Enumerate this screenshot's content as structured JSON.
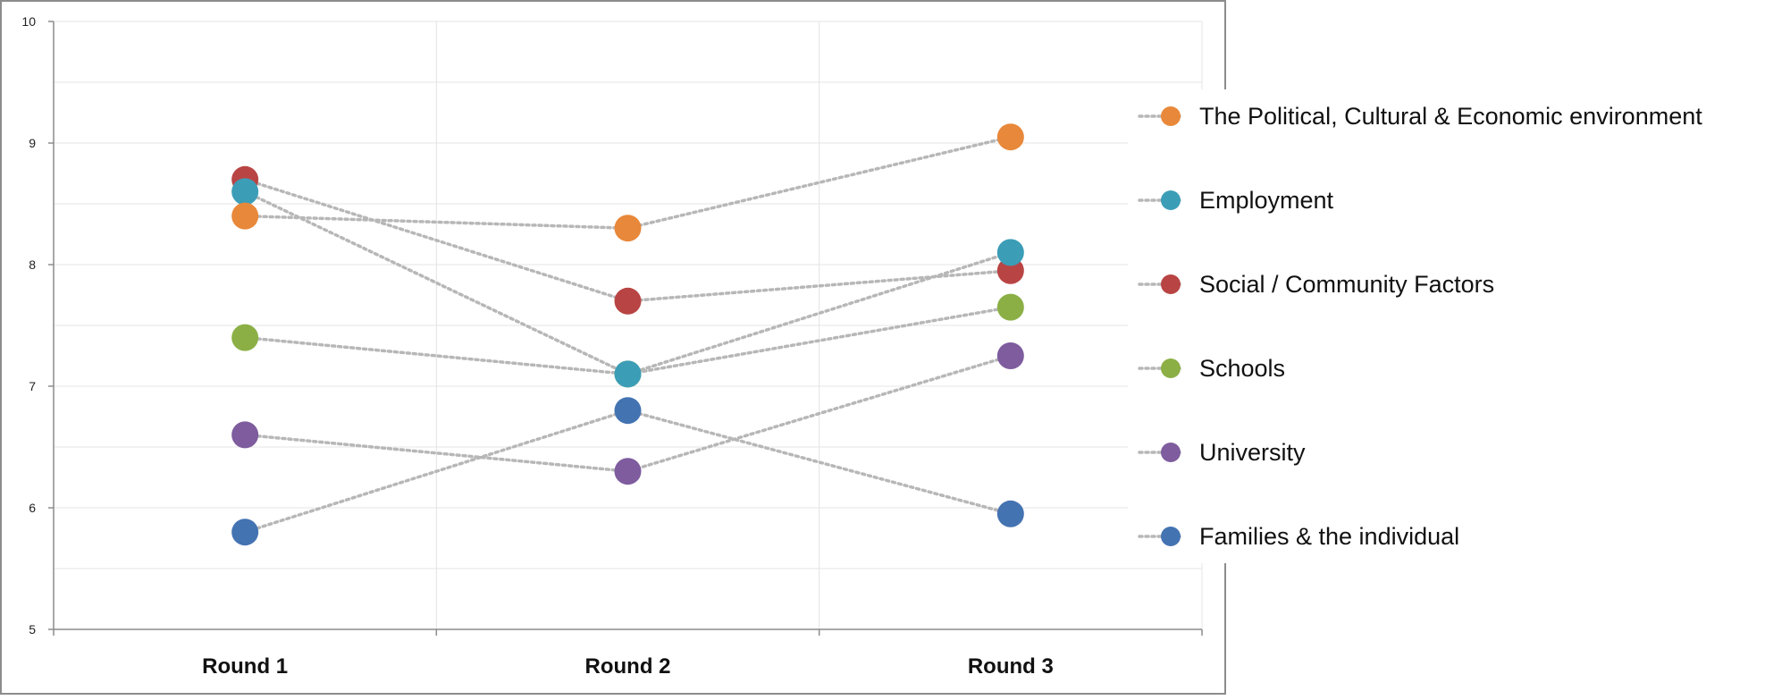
{
  "chart_data": {
    "type": "line",
    "title": "",
    "xlabel": "",
    "ylabel": "",
    "categories": [
      "Round 1",
      "Round 2",
      "Round 3"
    ],
    "ylim": [
      5,
      10
    ],
    "y_ticks": [
      5,
      6,
      7,
      8,
      9,
      10
    ],
    "grid": true,
    "line_style": "dotted",
    "line_color": "#B7B7B7",
    "legend_position": "right",
    "series": [
      {
        "name": "The Political, Cultural & Economic environment",
        "color": "#E8883A",
        "values": [
          8.4,
          8.3,
          9.05
        ]
      },
      {
        "name": "Employment",
        "color": "#3C9DB7",
        "values": [
          8.6,
          7.1,
          8.1
        ]
      },
      {
        "name": "Social / Community Factors",
        "color": "#B94444",
        "values": [
          8.7,
          7.7,
          7.95
        ]
      },
      {
        "name": "Schools",
        "color": "#8BAF45",
        "values": [
          7.4,
          7.1,
          7.65
        ]
      },
      {
        "name": "University",
        "color": "#7E5C9E",
        "values": [
          6.6,
          6.3,
          7.25
        ]
      },
      {
        "name": "Families & the individual",
        "color": "#4473B2",
        "values": [
          5.8,
          6.8,
          5.95
        ]
      }
    ]
  }
}
